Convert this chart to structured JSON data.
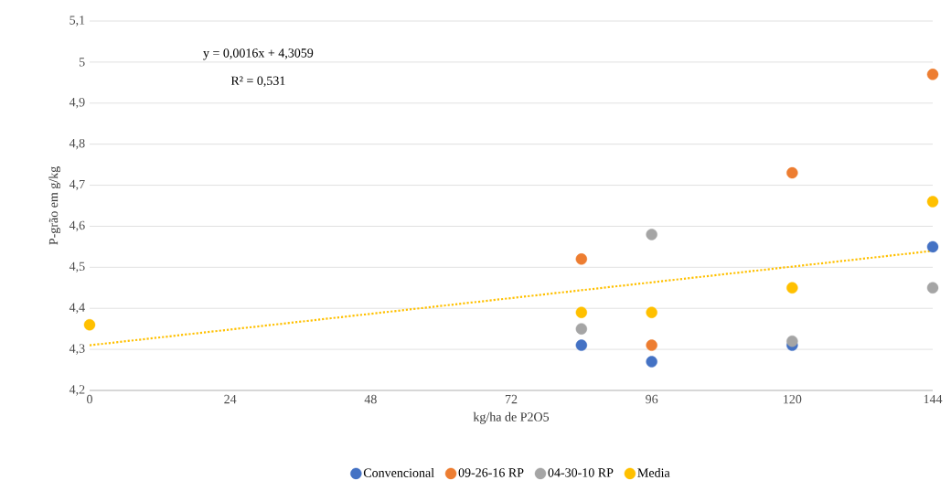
{
  "chart_data": {
    "type": "scatter",
    "xlabel": "kg/ha de P2O5",
    "ylabel": "P-grão em g/kg",
    "x": [
      0,
      84,
      96,
      120,
      144
    ],
    "series": [
      {
        "name": "Convencional",
        "color": "#4472c4",
        "values": [
          null,
          4.31,
          4.27,
          4.31,
          4.55
        ]
      },
      {
        "name": "09-26-16 RP",
        "color": "#ed7d31",
        "values": [
          null,
          4.52,
          4.31,
          4.73,
          4.97
        ]
      },
      {
        "name": "04-30-10 RP",
        "color": "#a5a5a5",
        "values": [
          null,
          4.35,
          4.58,
          4.32,
          4.45
        ]
      },
      {
        "name": "Media",
        "color": "#ffc000",
        "values": [
          4.36,
          4.39,
          4.39,
          4.45,
          4.66
        ]
      },
      {
        "type": "line",
        "color": "#ffc000",
        "line_style": "dotted",
        "marker": "none",
        "x": [
          0,
          144
        ],
        "values": [
          4.31,
          4.54
        ]
      }
    ],
    "annotations": [
      "y = 0,0016x + 4,3059",
      "R² = 0,531"
    ],
    "xlim": [
      0,
      144
    ],
    "xticks": [
      0,
      24,
      48,
      72,
      96,
      120,
      144
    ],
    "ylim": [
      4.2,
      5.1
    ],
    "yticks": [
      {
        "value": 4.2,
        "label": "4,2"
      },
      {
        "value": 4.3,
        "label": "4,3"
      },
      {
        "value": 4.4,
        "label": "4,4"
      },
      {
        "value": 4.5,
        "label": "4,5"
      },
      {
        "value": 4.6,
        "label": "4,6"
      },
      {
        "value": 4.7,
        "label": "4,7"
      },
      {
        "value": 4.8,
        "label": "4,8"
      },
      {
        "value": 4.9,
        "label": "4,9"
      },
      {
        "value": 5,
        "label": "5"
      },
      {
        "value": 5.1,
        "label": "5,1"
      }
    ],
    "grid": "y",
    "legend": "bottom",
    "marker": "circle"
  }
}
